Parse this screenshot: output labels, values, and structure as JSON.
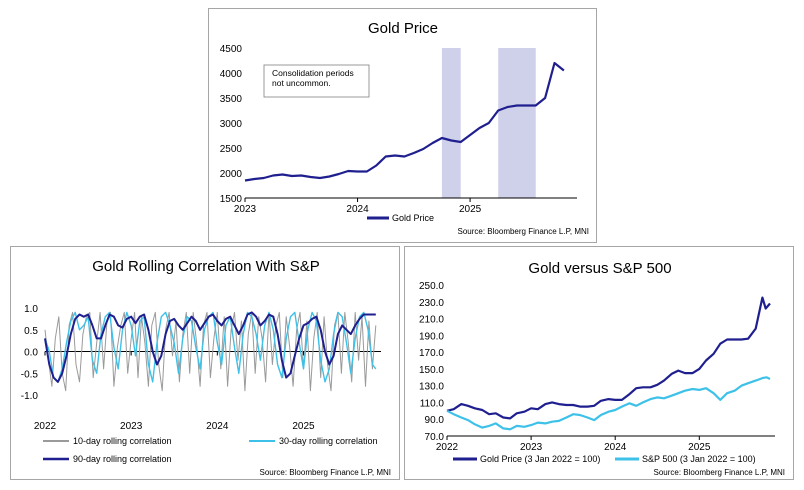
{
  "colors": {
    "navy": "#1f1f8f",
    "cyan": "#3ec1e8",
    "grey": "#9a9a9a",
    "shade": "#cfd0ea"
  },
  "chart_data": [
    {
      "type": "line",
      "title": "Gold Price",
      "ylim": [
        1500,
        4500
      ],
      "yticks": [
        "4500",
        "4000",
        "3500",
        "3000",
        "2500",
        "2000",
        "1500"
      ],
      "xticks": [
        "2023",
        "2024",
        "2025"
      ],
      "annotation": "Consolidation periods not uncommon.",
      "annotation_lines": [
        "Consolidation periods",
        "not uncommon."
      ],
      "shaded_periods": [
        [
          "2024-10",
          "2024-12"
        ],
        [
          "2025-04",
          "2025-08"
        ]
      ],
      "source": "Source: Bloomberg Finance L.P, MNI",
      "series": [
        {
          "name": "Gold Price",
          "x": [
            "2023-01",
            "2023-02",
            "2023-03",
            "2023-04",
            "2023-05",
            "2023-06",
            "2023-07",
            "2023-08",
            "2023-09",
            "2023-10",
            "2023-11",
            "2023-12",
            "2024-01",
            "2024-02",
            "2024-03",
            "2024-04",
            "2024-05",
            "2024-06",
            "2024-07",
            "2024-08",
            "2024-09",
            "2024-10",
            "2024-11",
            "2024-12",
            "2025-01",
            "2025-02",
            "2025-03",
            "2025-04",
            "2025-05",
            "2025-06",
            "2025-07",
            "2025-08",
            "2025-09",
            "2025-10",
            "2025-11"
          ],
          "values": [
            1850,
            1880,
            1900,
            1950,
            1970,
            1940,
            1950,
            1920,
            1900,
            1930,
            1980,
            2040,
            2030,
            2030,
            2150,
            2330,
            2350,
            2330,
            2400,
            2480,
            2600,
            2700,
            2650,
            2620,
            2760,
            2900,
            3000,
            3250,
            3320,
            3350,
            3350,
            3350,
            3500,
            4200,
            4050
          ]
        }
      ]
    },
    {
      "type": "line",
      "title": "Gold Rolling Correlation With S&P",
      "ylim": [
        -1.0,
        1.0
      ],
      "yticks": [
        "1.0",
        "0.5",
        "0.0",
        "-0.5",
        "-1.0"
      ],
      "xticks": [
        "2022",
        "2023",
        "2024",
        "2025"
      ],
      "source": "Source: Bloomberg Finance L.P, MNI",
      "series": [
        {
          "name": "10-day rolling correlation",
          "x": [
            2022.0,
            2022.04,
            2022.08,
            2022.12,
            2022.16,
            2022.2,
            2022.24,
            2022.28,
            2022.32,
            2022.36,
            2022.4,
            2022.44,
            2022.48,
            2022.52,
            2022.56,
            2022.6,
            2022.64,
            2022.68,
            2022.72,
            2022.76,
            2022.8,
            2022.84,
            2022.88,
            2022.92,
            2022.96,
            2023.0,
            2023.04,
            2023.08,
            2023.12,
            2023.16,
            2023.2,
            2023.24,
            2023.28,
            2023.32,
            2023.36,
            2023.4,
            2023.44,
            2023.48,
            2023.52,
            2023.56,
            2023.6,
            2023.64,
            2023.68,
            2023.72,
            2023.76,
            2023.8,
            2023.84,
            2023.88,
            2023.92,
            2023.96,
            2024.0,
            2024.04,
            2024.08,
            2024.12,
            2024.16,
            2024.2,
            2024.24,
            2024.28,
            2024.32,
            2024.36,
            2024.4,
            2024.44,
            2024.48,
            2024.52,
            2024.56,
            2024.6,
            2024.64,
            2024.68,
            2024.72,
            2024.76,
            2024.8,
            2024.84,
            2024.88,
            2024.92,
            2024.96,
            2025.0,
            2025.04,
            2025.08,
            2025.12,
            2025.16,
            2025.2,
            2025.24,
            2025.28,
            2025.32,
            2025.36,
            2025.4,
            2025.44,
            2025.48,
            2025.52,
            2025.56,
            2025.6,
            2025.64,
            2025.68,
            2025.72,
            2025.76,
            2025.8,
            2025.84
          ],
          "values": [
            0.5,
            -0.2,
            -0.8,
            0.3,
            0.8,
            -0.5,
            -0.9,
            0.6,
            0.9,
            -0.3,
            -0.7,
            0.4,
            0.8,
            0.9,
            -0.6,
            0.2,
            0.9,
            -0.4,
            0.7,
            0.9,
            -0.8,
            0.1,
            0.6,
            0.9,
            -0.5,
            0.3,
            0.9,
            -0.6,
            0.8,
            0.2,
            -0.8,
            0.6,
            0.9,
            -0.3,
            -0.9,
            0.5,
            0.9,
            -0.1,
            0.7,
            -0.7,
            0.4,
            0.9,
            -0.5,
            0.9,
            0.2,
            -0.8,
            0.6,
            0.9,
            -0.6,
            0.3,
            0.9,
            -0.4,
            0.8,
            -0.8,
            0.5,
            0.9,
            -0.2,
            0.7,
            -0.9,
            0.4,
            0.9,
            -0.5,
            0.8,
            0.3,
            -0.7,
            0.9,
            -0.3,
            0.6,
            0.9,
            -0.6,
            0.8,
            0.1,
            -0.8,
            0.5,
            0.9,
            -0.4,
            0.7,
            -0.9,
            0.3,
            0.9,
            -0.6,
            0.8,
            -0.3,
            -0.9,
            0.6,
            0.9,
            -0.5,
            0.9,
            0.2,
            -0.7,
            0.9,
            -0.2,
            0.8,
            -0.8,
            0.7,
            -0.4,
            0.6
          ]
        },
        {
          "name": "30-day rolling correlation",
          "x": [
            2022.0,
            2022.05,
            2022.1,
            2022.15,
            2022.2,
            2022.25,
            2022.3,
            2022.35,
            2022.4,
            2022.45,
            2022.5,
            2022.55,
            2022.6,
            2022.65,
            2022.7,
            2022.75,
            2022.8,
            2022.85,
            2022.9,
            2022.95,
            2023.0,
            2023.05,
            2023.1,
            2023.15,
            2023.2,
            2023.25,
            2023.3,
            2023.35,
            2023.4,
            2023.45,
            2023.5,
            2023.55,
            2023.6,
            2023.65,
            2023.7,
            2023.75,
            2023.8,
            2023.85,
            2023.9,
            2023.95,
            2024.0,
            2024.05,
            2024.1,
            2024.15,
            2024.2,
            2024.25,
            2024.3,
            2024.35,
            2024.4,
            2024.45,
            2024.5,
            2024.55,
            2024.6,
            2024.65,
            2024.7,
            2024.75,
            2024.8,
            2024.85,
            2024.9,
            2024.95,
            2025.0,
            2025.05,
            2025.1,
            2025.15,
            2025.2,
            2025.25,
            2025.3,
            2025.35,
            2025.4,
            2025.45,
            2025.5,
            2025.55,
            2025.6,
            2025.65,
            2025.7,
            2025.75,
            2025.8,
            2025.84
          ],
          "values": [
            0.3,
            0.0,
            -0.6,
            -0.7,
            -0.4,
            0.2,
            0.7,
            0.9,
            0.5,
            0.6,
            0.8,
            -0.2,
            -0.5,
            0.4,
            0.8,
            0.9,
            0.1,
            -0.4,
            0.5,
            0.9,
            0.6,
            -0.1,
            0.7,
            0.8,
            -0.3,
            -0.7,
            0.2,
            0.8,
            0.9,
            0.6,
            0.2,
            -0.5,
            0.3,
            0.8,
            0.7,
            0.1,
            -0.4,
            0.5,
            0.8,
            0.9,
            0.2,
            -0.3,
            0.6,
            0.8,
            0.1,
            -0.5,
            0.4,
            0.9,
            0.8,
            0.4,
            -0.2,
            0.6,
            0.9,
            0.5,
            -0.3,
            -0.6,
            0.3,
            0.8,
            0.9,
            0.2,
            -0.4,
            0.5,
            0.9,
            0.7,
            -0.2,
            -0.7,
            -0.4,
            0.4,
            0.9,
            0.8,
            0.2,
            -0.5,
            0.3,
            0.8,
            0.9,
            0.5,
            -0.3,
            -0.4
          ]
        },
        {
          "name": "90-day rolling correlation",
          "x": [
            2022.0,
            2022.05,
            2022.1,
            2022.15,
            2022.2,
            2022.25,
            2022.3,
            2022.35,
            2022.4,
            2022.45,
            2022.5,
            2022.55,
            2022.6,
            2022.65,
            2022.7,
            2022.75,
            2022.8,
            2022.85,
            2022.9,
            2022.95,
            2023.0,
            2023.05,
            2023.1,
            2023.15,
            2023.2,
            2023.25,
            2023.3,
            2023.35,
            2023.4,
            2023.45,
            2023.5,
            2023.55,
            2023.6,
            2023.65,
            2023.7,
            2023.75,
            2023.8,
            2023.85,
            2023.9,
            2023.95,
            2024.0,
            2024.05,
            2024.1,
            2024.15,
            2024.2,
            2024.25,
            2024.3,
            2024.35,
            2024.4,
            2024.45,
            2024.5,
            2024.55,
            2024.6,
            2024.65,
            2024.7,
            2024.75,
            2024.8,
            2024.85,
            2024.9,
            2024.95,
            2025.0,
            2025.05,
            2025.1,
            2025.15,
            2025.2,
            2025.25,
            2025.3,
            2025.35,
            2025.4,
            2025.45,
            2025.5,
            2025.55,
            2025.6,
            2025.65,
            2025.7,
            2025.75,
            2025.8,
            2025.84
          ],
          "values": [
            0.3,
            -0.3,
            -0.6,
            -0.7,
            -0.5,
            -0.1,
            0.4,
            0.75,
            0.85,
            0.8,
            0.85,
            0.6,
            0.3,
            0.3,
            0.6,
            0.85,
            0.8,
            0.6,
            0.55,
            0.75,
            0.8,
            0.65,
            0.8,
            0.85,
            0.5,
            0.0,
            -0.3,
            -0.1,
            0.4,
            0.7,
            0.75,
            0.6,
            0.5,
            0.65,
            0.8,
            0.7,
            0.5,
            0.65,
            0.8,
            0.85,
            0.7,
            0.6,
            0.75,
            0.8,
            0.6,
            0.4,
            0.6,
            0.85,
            0.9,
            0.8,
            0.6,
            0.7,
            0.85,
            0.8,
            0.4,
            -0.2,
            -0.6,
            -0.5,
            -0.1,
            0.3,
            0.6,
            0.65,
            0.75,
            0.8,
            0.5,
            0.0,
            -0.3,
            -0.1,
            0.4,
            0.6,
            0.5,
            0.4,
            0.6,
            0.75,
            0.85,
            0.85,
            0.85,
            0.85
          ]
        }
      ]
    },
    {
      "type": "line",
      "title": "Gold versus S&P 500",
      "ylim": [
        70,
        250
      ],
      "yticks": [
        "250.0",
        "230.0",
        "210.0",
        "190.0",
        "170.0",
        "150.0",
        "130.0",
        "110.0",
        "90.0",
        "70.0"
      ],
      "xticks": [
        "2022",
        "2023",
        "2024",
        "2025"
      ],
      "source": "Source: Bloomberg Finance L.P, MNI",
      "series": [
        {
          "name": "Gold Price (3 Jan 2022 = 100)",
          "x": [
            2022.0,
            2022.08,
            2022.17,
            2022.25,
            2022.33,
            2022.42,
            2022.5,
            2022.58,
            2022.67,
            2022.75,
            2022.83,
            2022.92,
            2023.0,
            2023.08,
            2023.17,
            2023.25,
            2023.33,
            2023.42,
            2023.5,
            2023.58,
            2023.67,
            2023.75,
            2023.83,
            2023.92,
            2024.0,
            2024.08,
            2024.17,
            2024.25,
            2024.33,
            2024.42,
            2024.5,
            2024.58,
            2024.67,
            2024.75,
            2024.83,
            2024.92,
            2025.0,
            2025.08,
            2025.17,
            2025.25,
            2025.33,
            2025.42,
            2025.5,
            2025.58,
            2025.67,
            2025.75,
            2025.79,
            2025.84
          ],
          "values": [
            100,
            102,
            108,
            106,
            103,
            101,
            96,
            97,
            92,
            91,
            97,
            99,
            103,
            102,
            108,
            110,
            108,
            107,
            107,
            105,
            105,
            106,
            112,
            114,
            113,
            113,
            120,
            127,
            128,
            128,
            131,
            136,
            144,
            148,
            145,
            145,
            150,
            160,
            168,
            180,
            185,
            185,
            185,
            186,
            198,
            235,
            222,
            228
          ]
        },
        {
          "name": "S&P 500 (3 Jan 2022 = 100)",
          "x": [
            2022.0,
            2022.08,
            2022.17,
            2022.25,
            2022.33,
            2022.42,
            2022.5,
            2022.58,
            2022.67,
            2022.75,
            2022.83,
            2022.92,
            2023.0,
            2023.08,
            2023.17,
            2023.25,
            2023.33,
            2023.42,
            2023.5,
            2023.58,
            2023.67,
            2023.75,
            2023.83,
            2023.92,
            2024.0,
            2024.08,
            2024.17,
            2024.25,
            2024.33,
            2024.42,
            2024.5,
            2024.58,
            2024.67,
            2024.75,
            2024.83,
            2024.92,
            2025.0,
            2025.08,
            2025.17,
            2025.25,
            2025.33,
            2025.42,
            2025.5,
            2025.58,
            2025.67,
            2025.75,
            2025.8,
            2025.84
          ],
          "values": [
            100,
            96,
            92,
            89,
            84,
            80,
            82,
            85,
            79,
            78,
            82,
            81,
            83,
            86,
            85,
            87,
            88,
            92,
            96,
            95,
            92,
            89,
            95,
            99,
            101,
            105,
            109,
            106,
            110,
            114,
            116,
            115,
            118,
            121,
            124,
            126,
            125,
            127,
            121,
            113,
            121,
            124,
            130,
            133,
            136,
            139,
            140,
            138
          ]
        }
      ]
    }
  ]
}
